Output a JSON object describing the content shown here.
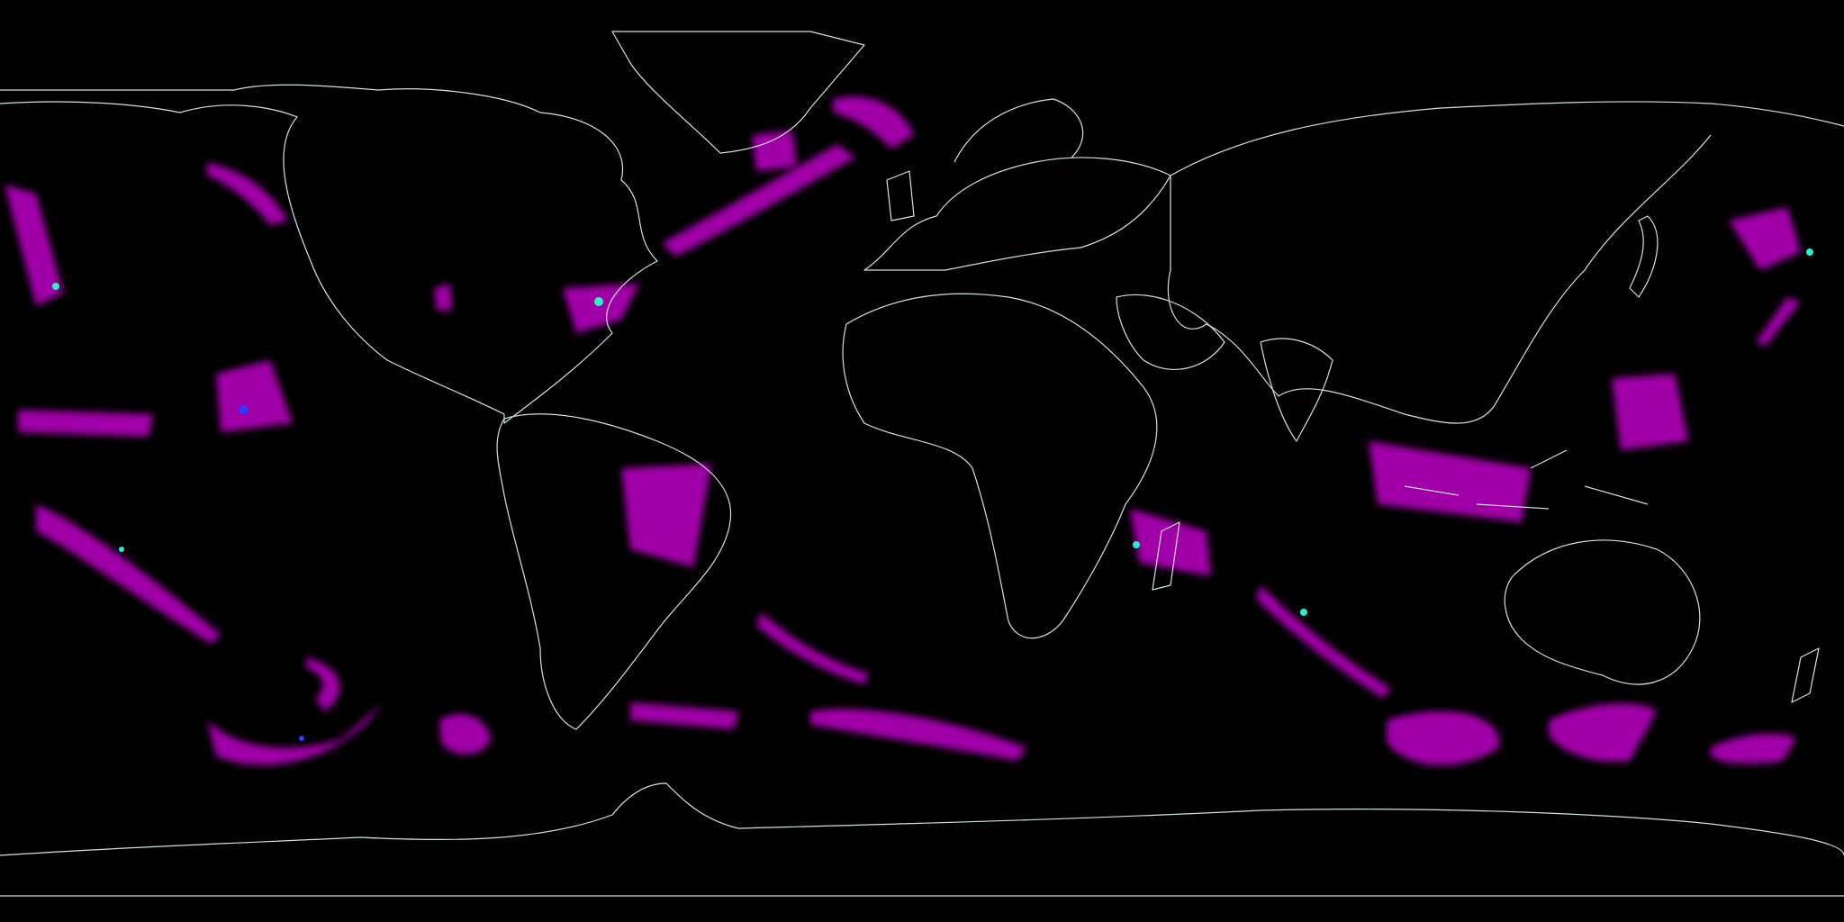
{
  "map": {
    "projection": "equirectangular",
    "background_color": "#000000",
    "coastline_color": "#cfe3e6",
    "precip_colors": {
      "light": "#b000b8",
      "moderate": "#d22cd8",
      "heavy": "#2b3cff",
      "extreme": "#29f0c8"
    },
    "labels": []
  }
}
